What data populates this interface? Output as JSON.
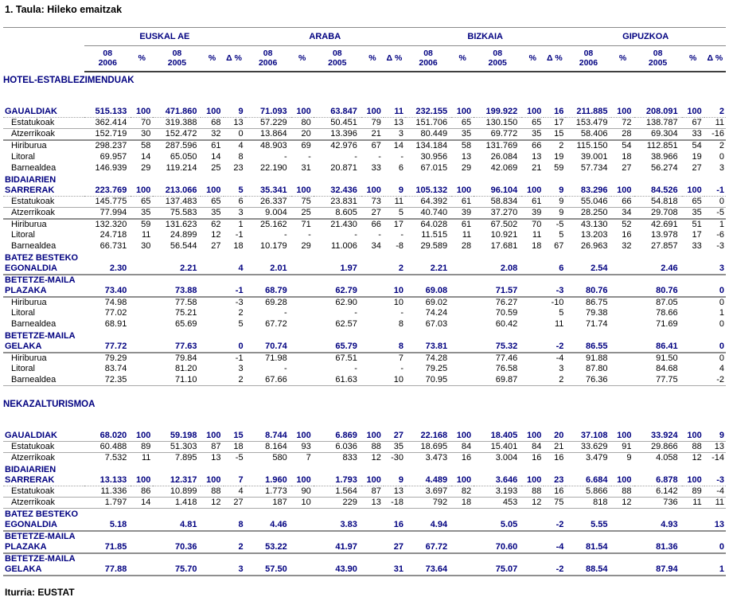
{
  "page": {
    "title": "1. Taula: Hileko emaitzak",
    "footer": "Iturria: EUSTAT"
  },
  "colors": {
    "navy": "#000080",
    "text": "#000000",
    "line_light": "#a9a9a9",
    "line_medium": "#8f8f8f",
    "line_dark": "#3f3f3f"
  },
  "table": {
    "groups": [
      "EUSKAL AE",
      "ARABA",
      "BIZKAIA",
      "GIPUZKOA"
    ],
    "subcolumns": [
      [
        "08",
        "2006"
      ],
      [
        "%"
      ],
      [
        "08",
        "2005"
      ],
      [
        "%"
      ],
      [
        "Δ %"
      ]
    ],
    "sections": [
      {
        "name": "HOTEL-ESTABLEZIMENDUAK",
        "rows": [
          {
            "label": [
              "GAUALDIAK"
            ],
            "kind": "total",
            "border": "dotted",
            "cells": [
              "515.133",
              "100",
              "471.860",
              "100",
              "9",
              "71.093",
              "100",
              "63.847",
              "100",
              "11",
              "232.155",
              "100",
              "199.922",
              "100",
              "16",
              "211.885",
              "100",
              "208.091",
              "100",
              "2"
            ]
          },
          {
            "label": [
              "Estatukoak"
            ],
            "kind": "sub",
            "border": "thin",
            "cells": [
              "362.414",
              "70",
              "319.388",
              "68",
              "13",
              "57.229",
              "80",
              "50.451",
              "79",
              "13",
              "151.706",
              "65",
              "130.150",
              "65",
              "17",
              "153.479",
              "72",
              "138.787",
              "67",
              "11"
            ]
          },
          {
            "label": [
              "Atzerrikoak"
            ],
            "kind": "sub",
            "border": "med",
            "cells": [
              "152.719",
              "30",
              "152.472",
              "32",
              "0",
              "13.864",
              "20",
              "13.396",
              "21",
              "3",
              "80.449",
              "35",
              "69.772",
              "35",
              "15",
              "58.406",
              "28",
              "69.304",
              "33",
              "-16"
            ]
          },
          {
            "label": [
              "Hiriburua"
            ],
            "kind": "sub",
            "border": "none",
            "cells": [
              "298.237",
              "58",
              "287.596",
              "61",
              "4",
              "48.903",
              "69",
              "42.976",
              "67",
              "14",
              "134.184",
              "58",
              "131.769",
              "66",
              "2",
              "115.150",
              "54",
              "112.851",
              "54",
              "2"
            ]
          },
          {
            "label": [
              "Litoral"
            ],
            "kind": "sub",
            "border": "none",
            "cells": [
              "69.957",
              "14",
              "65.050",
              "14",
              "8",
              "-",
              "-",
              "-",
              "-",
              "-",
              "30.956",
              "13",
              "26.084",
              "13",
              "19",
              "39.001",
              "18",
              "38.966",
              "19",
              "0"
            ]
          },
          {
            "label": [
              "Barnealdea"
            ],
            "kind": "sub",
            "border": "none",
            "cells": [
              "146.939",
              "29",
              "119.214",
              "25",
              "23",
              "22.190",
              "31",
              "20.871",
              "33",
              "6",
              "67.015",
              "29",
              "42.069",
              "21",
              "59",
              "57.734",
              "27",
              "56.274",
              "27",
              "3"
            ]
          },
          {
            "label": [
              "BIDAIARIEN",
              "SARRERAK"
            ],
            "kind": "total",
            "border": "dotted",
            "cells": [
              "223.769",
              "100",
              "213.066",
              "100",
              "5",
              "35.341",
              "100",
              "32.436",
              "100",
              "9",
              "105.132",
              "100",
              "96.104",
              "100",
              "9",
              "83.296",
              "100",
              "84.526",
              "100",
              "-1"
            ]
          },
          {
            "label": [
              "Estatukoak"
            ],
            "kind": "sub",
            "border": "thin",
            "cells": [
              "145.775",
              "65",
              "137.483",
              "65",
              "6",
              "26.337",
              "75",
              "23.831",
              "73",
              "11",
              "64.392",
              "61",
              "58.834",
              "61",
              "9",
              "55.046",
              "66",
              "54.818",
              "65",
              "0"
            ]
          },
          {
            "label": [
              "Atzerrikoak"
            ],
            "kind": "sub",
            "border": "med",
            "cells": [
              "77.994",
              "35",
              "75.583",
              "35",
              "3",
              "9.004",
              "25",
              "8.605",
              "27",
              "5",
              "40.740",
              "39",
              "37.270",
              "39",
              "9",
              "28.250",
              "34",
              "29.708",
              "35",
              "-5"
            ]
          },
          {
            "label": [
              "Hiriburua"
            ],
            "kind": "sub",
            "border": "none",
            "cells": [
              "132.320",
              "59",
              "131.623",
              "62",
              "1",
              "25.162",
              "71",
              "21.430",
              "66",
              "17",
              "64.028",
              "61",
              "67.502",
              "70",
              "-5",
              "43.130",
              "52",
              "42.691",
              "51",
              "1"
            ]
          },
          {
            "label": [
              "Litoral"
            ],
            "kind": "sub",
            "border": "none",
            "cells": [
              "24.718",
              "11",
              "24.899",
              "12",
              "-1",
              "-",
              "-",
              "-",
              "-",
              "-",
              "11.515",
              "11",
              "10.921",
              "11",
              "5",
              "13.203",
              "16",
              "13.978",
              "17",
              "-6"
            ]
          },
          {
            "label": [
              "Barnealdea"
            ],
            "kind": "sub",
            "border": "none",
            "cells": [
              "66.731",
              "30",
              "56.544",
              "27",
              "18",
              "10.179",
              "29",
              "11.006",
              "34",
              "-8",
              "29.589",
              "28",
              "17.681",
              "18",
              "67",
              "26.963",
              "32",
              "27.857",
              "33",
              "-3"
            ]
          },
          {
            "label": [
              "BATEZ BESTEKO",
              "EGONALDIA"
            ],
            "kind": "total",
            "border": "med",
            "cells": [
              "2.30",
              "",
              "2.21",
              "",
              "4",
              "2.01",
              "",
              "1.97",
              "",
              "2",
              "2.21",
              "",
              "2.08",
              "",
              "6",
              "2.54",
              "",
              "2.46",
              "",
              "3"
            ]
          },
          {
            "label": [
              "BETETZE-MAILA",
              "PLAZAKA"
            ],
            "kind": "total",
            "border": "med",
            "cells": [
              "73.40",
              "",
              "73.88",
              "",
              "-1",
              "68.79",
              "",
              "62.79",
              "",
              "10",
              "69.08",
              "",
              "71.57",
              "",
              "-3",
              "80.76",
              "",
              "80.76",
              "",
              "0"
            ]
          },
          {
            "label": [
              "Hiriburua"
            ],
            "kind": "sub",
            "border": "none",
            "cells": [
              "74.98",
              "",
              "77.58",
              "",
              "-3",
              "69.28",
              "",
              "62.90",
              "",
              "10",
              "69.02",
              "",
              "76.27",
              "",
              "-10",
              "86.75",
              "",
              "87.05",
              "",
              "0"
            ]
          },
          {
            "label": [
              "Litoral"
            ],
            "kind": "sub",
            "border": "none",
            "cells": [
              "77.02",
              "",
              "75.21",
              "",
              "2",
              "-",
              "",
              "-",
              "",
              "-",
              "74.24",
              "",
              "70.59",
              "",
              "5",
              "79.38",
              "",
              "78.66",
              "",
              "1"
            ]
          },
          {
            "label": [
              "Barnealdea"
            ],
            "kind": "sub",
            "border": "none",
            "cells": [
              "68.91",
              "",
              "65.69",
              "",
              "5",
              "67.72",
              "",
              "62.57",
              "",
              "8",
              "67.03",
              "",
              "60.42",
              "",
              "11",
              "71.74",
              "",
              "71.69",
              "",
              "0"
            ]
          },
          {
            "label": [
              "BETETZE-MAILA",
              "GELAKA"
            ],
            "kind": "total",
            "border": "med",
            "cells": [
              "77.72",
              "",
              "77.63",
              "",
              "0",
              "70.74",
              "",
              "65.79",
              "",
              "8",
              "73.81",
              "",
              "75.32",
              "",
              "-2",
              "86.55",
              "",
              "86.41",
              "",
              "0"
            ]
          },
          {
            "label": [
              "Hiriburua"
            ],
            "kind": "sub",
            "border": "none",
            "cells": [
              "79.29",
              "",
              "79.84",
              "",
              "-1",
              "71.98",
              "",
              "67.51",
              "",
              "7",
              "74.28",
              "",
              "77.46",
              "",
              "-4",
              "91.88",
              "",
              "91.50",
              "",
              "0"
            ]
          },
          {
            "label": [
              "Litoral"
            ],
            "kind": "sub",
            "border": "none",
            "cells": [
              "83.74",
              "",
              "81.20",
              "",
              "3",
              "-",
              "",
              "-",
              "",
              "-",
              "79.25",
              "",
              "76.58",
              "",
              "3",
              "87.80",
              "",
              "84.68",
              "",
              "4"
            ]
          },
          {
            "label": [
              "Barnealdea"
            ],
            "kind": "sub",
            "border": "thin",
            "cells": [
              "72.35",
              "",
              "71.10",
              "",
              "2",
              "67.66",
              "",
              "61.63",
              "",
              "10",
              "70.95",
              "",
              "69.87",
              "",
              "2",
              "76.36",
              "",
              "77.75",
              "",
              "-2"
            ]
          }
        ]
      },
      {
        "name": "NEKAZALTURISMOA",
        "rows": [
          {
            "label": [
              "GAUALDIAK"
            ],
            "kind": "total",
            "border": "thin",
            "cells": [
              "68.020",
              "100",
              "59.198",
              "100",
              "15",
              "8.744",
              "100",
              "6.869",
              "100",
              "27",
              "22.168",
              "100",
              "18.405",
              "100",
              "20",
              "37.108",
              "100",
              "33.924",
              "100",
              "9"
            ]
          },
          {
            "label": [
              "Estatukoak"
            ],
            "kind": "sub",
            "border": "thin",
            "cells": [
              "60.488",
              "89",
              "51.303",
              "87",
              "18",
              "8.164",
              "93",
              "6.036",
              "88",
              "35",
              "18.695",
              "84",
              "15.401",
              "84",
              "21",
              "33.629",
              "91",
              "29.866",
              "88",
              "13"
            ]
          },
          {
            "label": [
              "Atzerrikoak"
            ],
            "kind": "sub",
            "border": "none",
            "cells": [
              "7.532",
              "11",
              "7.895",
              "13",
              "-5",
              "580",
              "7",
              "833",
              "12",
              "-30",
              "3.473",
              "16",
              "3.004",
              "16",
              "16",
              "3.479",
              "9",
              "4.058",
              "12",
              "-14"
            ]
          },
          {
            "label": [
              "BIDAIARIEN",
              "SARRERAK"
            ],
            "kind": "total",
            "border": "dotted",
            "cells": [
              "13.133",
              "100",
              "12.317",
              "100",
              "7",
              "1.960",
              "100",
              "1.793",
              "100",
              "9",
              "4.489",
              "100",
              "3.646",
              "100",
              "23",
              "6.684",
              "100",
              "6.878",
              "100",
              "-3"
            ]
          },
          {
            "label": [
              "Estatukoak"
            ],
            "kind": "sub",
            "border": "thin",
            "cells": [
              "11.336",
              "86",
              "10.899",
              "88",
              "4",
              "1.773",
              "90",
              "1.564",
              "87",
              "13",
              "3.697",
              "82",
              "3.193",
              "88",
              "16",
              "5.866",
              "88",
              "6.142",
              "89",
              "-4"
            ]
          },
          {
            "label": [
              "Atzerrikoak"
            ],
            "kind": "sub",
            "border": "thin",
            "cells": [
              "1.797",
              "14",
              "1.418",
              "12",
              "27",
              "187",
              "10",
              "229",
              "13",
              "-18",
              "792",
              "18",
              "453",
              "12",
              "75",
              "818",
              "12",
              "736",
              "11",
              "11"
            ]
          },
          {
            "label": [
              "BATEZ BESTEKO",
              "EGONALDIA"
            ],
            "kind": "total",
            "border": "med",
            "cells": [
              "5.18",
              "",
              "4.81",
              "",
              "8",
              "4.46",
              "",
              "3.83",
              "",
              "16",
              "4.94",
              "",
              "5.05",
              "",
              "-2",
              "5.55",
              "",
              "4.93",
              "",
              "13"
            ]
          },
          {
            "label": [
              "BETETZE-MAILA",
              "PLAZAKA"
            ],
            "kind": "total",
            "border": "med",
            "cells": [
              "71.85",
              "",
              "70.36",
              "",
              "2",
              "53.22",
              "",
              "41.97",
              "",
              "27",
              "67.72",
              "",
              "70.60",
              "",
              "-4",
              "81.54",
              "",
              "81.36",
              "",
              "0"
            ]
          },
          {
            "label": [
              "BETETZE-MAILA",
              "GELAKA"
            ],
            "kind": "total",
            "border": "med",
            "cells": [
              "77.88",
              "",
              "75.70",
              "",
              "3",
              "57.50",
              "",
              "43.90",
              "",
              "31",
              "73.64",
              "",
              "75.07",
              "",
              "-2",
              "88.54",
              "",
              "87.94",
              "",
              "1"
            ]
          }
        ]
      }
    ]
  }
}
